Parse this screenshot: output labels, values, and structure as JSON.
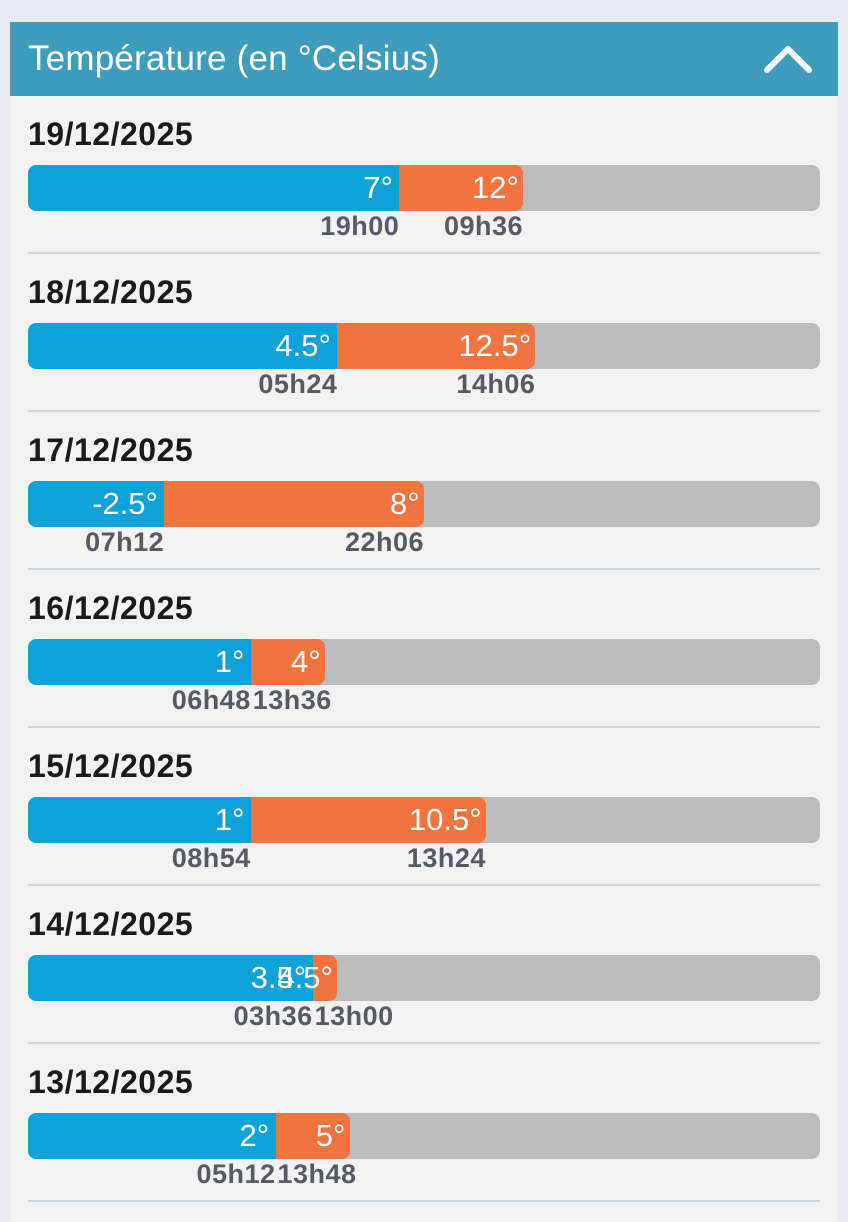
{
  "header": {
    "title": "Température (en °Celsius)",
    "collapse_icon": "chevron-up-icon"
  },
  "colors": {
    "header": "#3f9cbb",
    "min_bar": "#0fa2d8",
    "max_bar": "#f0743f",
    "track": "#bcbcbc"
  },
  "scale": {
    "from": -8,
    "to": 24
  },
  "days": [
    {
      "date": "19/12/2025",
      "min": 7,
      "min_label": "7°",
      "min_time": "19h00",
      "max": 12,
      "max_label": "12°",
      "max_time": "09h36"
    },
    {
      "date": "18/12/2025",
      "min": 4.5,
      "min_label": "4.5°",
      "min_time": "05h24",
      "max": 12.5,
      "max_label": "12.5°",
      "max_time": "14h06"
    },
    {
      "date": "17/12/2025",
      "min": -2.5,
      "min_label": "-2.5°",
      "min_time": "07h12",
      "max": 8,
      "max_label": "8°",
      "max_time": "22h06"
    },
    {
      "date": "16/12/2025",
      "min": 1,
      "min_label": "1°",
      "min_time": "06h48",
      "max": 4,
      "max_label": "4°",
      "max_time": "13h36"
    },
    {
      "date": "15/12/2025",
      "min": 1,
      "min_label": "1°",
      "min_time": "08h54",
      "max": 10.5,
      "max_label": "10.5°",
      "max_time": "13h24"
    },
    {
      "date": "14/12/2025",
      "min": 3.5,
      "min_label": "3.5°",
      "min_time": "03h36",
      "max": 4.5,
      "max_label": "4.5°",
      "max_time": "13h00"
    },
    {
      "date": "13/12/2025",
      "min": 2,
      "min_label": "2°",
      "min_time": "05h12",
      "max": 5,
      "max_label": "5°",
      "max_time": "13h48"
    }
  ]
}
